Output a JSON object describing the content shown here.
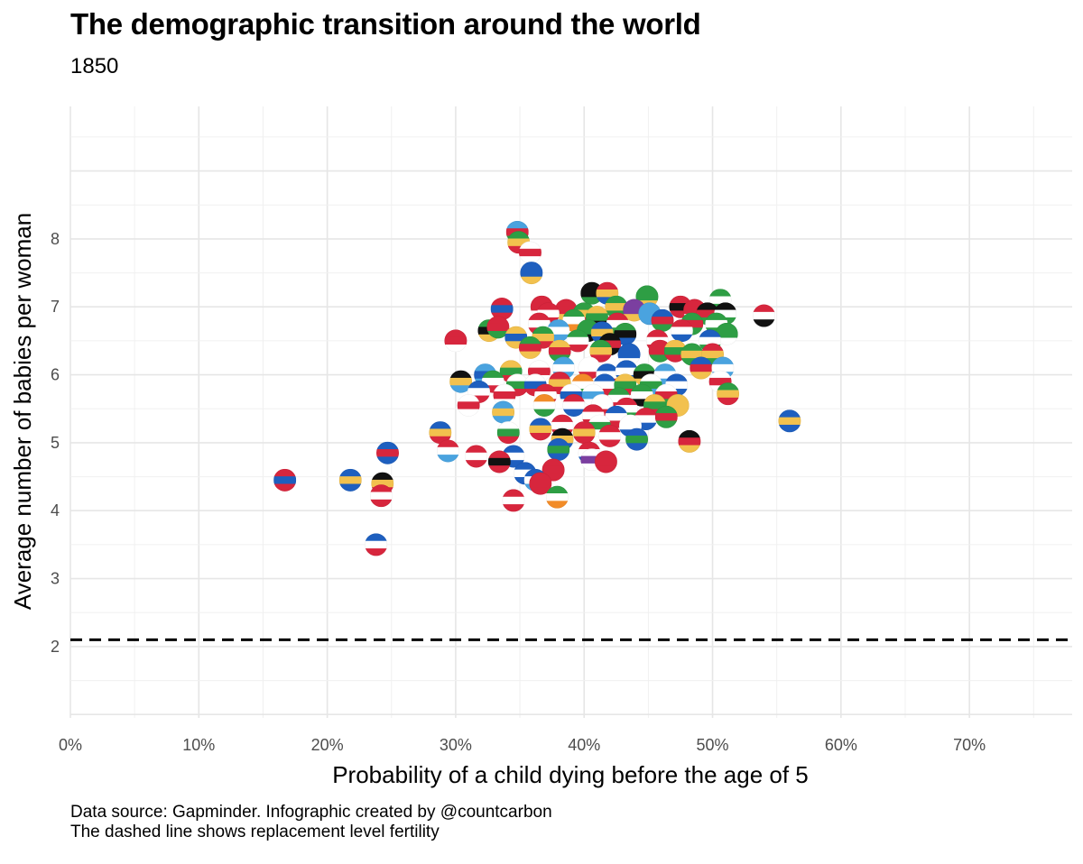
{
  "chart_data": {
    "type": "scatter",
    "title": "The demographic transition around the world",
    "subtitle": "1850",
    "xlabel": "Probability of a child dying before the age of 5",
    "ylabel": "Average number of babies per woman",
    "xlim": [
      0,
      78
    ],
    "ylim": [
      0.95,
      9.95
    ],
    "x_ticks": [
      0,
      10,
      20,
      30,
      40,
      50,
      60,
      70
    ],
    "x_tick_labels": [
      "0%",
      "10%",
      "20%",
      "30%",
      "40%",
      "50%",
      "60%",
      "70%"
    ],
    "y_ticks": [
      2,
      3,
      4,
      5,
      6,
      7,
      8
    ],
    "y_tick_labels": [
      "2",
      "3",
      "4",
      "5",
      "6",
      "7",
      "8"
    ],
    "grid": true,
    "reference_line": {
      "y": 2.1,
      "style": "dashed",
      "label": "replacement level fertility"
    },
    "caption": [
      "Data source: Gapminder. Infographic created by @countcarbon",
      "The dashed line shows replacement level fertility"
    ],
    "flag_colors": [
      "#d7263d",
      "#1e5fbf",
      "#2e9e44",
      "#f2c14e",
      "#111111",
      "#ffffff",
      "#f28c28",
      "#7b3fa0",
      "#4aa3df",
      "#e8e8e8"
    ],
    "points": [
      {
        "x": 34.8,
        "y": 8.1,
        "c": [
          "#4aa3df",
          "#d7263d",
          "#2e9e44"
        ]
      },
      {
        "x": 34.9,
        "y": 7.95,
        "c": [
          "#2e9e44",
          "#f2c14e",
          "#d7263d"
        ]
      },
      {
        "x": 35.8,
        "y": 7.8,
        "c": [
          "#ffffff",
          "#d7263d",
          "#ffffff"
        ]
      },
      {
        "x": 35.9,
        "y": 7.5,
        "c": [
          "#1e5fbf",
          "#1e5fbf",
          "#f2c14e"
        ]
      },
      {
        "x": 40.6,
        "y": 7.2,
        "c": [
          "#111111",
          "#111111",
          "#2e9e44"
        ]
      },
      {
        "x": 41.8,
        "y": 7.2,
        "c": [
          "#d7263d",
          "#f2c14e",
          "#1e5fbf"
        ]
      },
      {
        "x": 44.9,
        "y": 7.15,
        "c": [
          "#2e9e44",
          "#2e9e44",
          "#f2c14e"
        ]
      },
      {
        "x": 50.6,
        "y": 7.1,
        "c": [
          "#2e9e44",
          "#ffffff",
          "#2e9e44"
        ]
      },
      {
        "x": 36.7,
        "y": 7.0,
        "c": [
          "#d7263d",
          "#d7263d",
          "#ffffff"
        ]
      },
      {
        "x": 33.6,
        "y": 6.97,
        "c": [
          "#d7263d",
          "#1e5fbf",
          "#d7263d"
        ]
      },
      {
        "x": 38.6,
        "y": 6.95,
        "c": [
          "#d7263d",
          "#d7263d",
          "#f2c14e"
        ]
      },
      {
        "x": 42.5,
        "y": 7.0,
        "c": [
          "#2e9e44",
          "#f2c14e",
          "#2e9e44"
        ]
      },
      {
        "x": 43.9,
        "y": 6.95,
        "c": [
          "#7b3fa0",
          "#7b3fa0",
          "#f2c14e"
        ]
      },
      {
        "x": 47.5,
        "y": 7.0,
        "c": [
          "#d7263d",
          "#111111",
          "#d7263d"
        ]
      },
      {
        "x": 48.6,
        "y": 6.95,
        "c": [
          "#d7263d",
          "#d7263d",
          "#ffffff"
        ]
      },
      {
        "x": 37.2,
        "y": 6.9,
        "c": [
          "#d7263d",
          "#ffffff",
          "#d7263d"
        ]
      },
      {
        "x": 40.0,
        "y": 6.9,
        "c": [
          "#2e9e44",
          "#f2c14e",
          "#d7263d"
        ]
      },
      {
        "x": 41.0,
        "y": 6.85,
        "c": [
          "#f2c14e",
          "#2e9e44",
          "#111111"
        ]
      },
      {
        "x": 45.1,
        "y": 6.9,
        "c": [
          "#4aa3df",
          "#4aa3df",
          "#4aa3df"
        ]
      },
      {
        "x": 49.6,
        "y": 6.9,
        "c": [
          "#111111",
          "#d7263d",
          "#2e9e44"
        ]
      },
      {
        "x": 51.0,
        "y": 6.9,
        "c": [
          "#111111",
          "#ffffff",
          "#2e9e44"
        ]
      },
      {
        "x": 54.0,
        "y": 6.87,
        "c": [
          "#d7263d",
          "#ffffff",
          "#111111"
        ]
      },
      {
        "x": 36.5,
        "y": 6.75,
        "c": [
          "#d7263d",
          "#ffffff",
          "#d7263d"
        ]
      },
      {
        "x": 39.2,
        "y": 6.8,
        "c": [
          "#2e9e44",
          "#ffffff",
          "#f28c28"
        ]
      },
      {
        "x": 42.6,
        "y": 6.75,
        "c": [
          "#d7263d",
          "#ffffff",
          "#2e9e44"
        ]
      },
      {
        "x": 46.1,
        "y": 6.8,
        "c": [
          "#1e5fbf",
          "#d7263d",
          "#2e9e44"
        ]
      },
      {
        "x": 48.4,
        "y": 6.75,
        "c": [
          "#2e9e44",
          "#d7263d",
          "#2e9e44"
        ]
      },
      {
        "x": 50.3,
        "y": 6.75,
        "c": [
          "#2e9e44",
          "#ffffff",
          "#2e9e44"
        ]
      },
      {
        "x": 32.6,
        "y": 6.65,
        "c": [
          "#2e9e44",
          "#111111",
          "#f2c14e"
        ]
      },
      {
        "x": 33.3,
        "y": 6.7,
        "c": [
          "#d7263d",
          "#d7263d",
          "#2e9e44"
        ]
      },
      {
        "x": 38.0,
        "y": 6.65,
        "c": [
          "#4aa3df",
          "#ffffff",
          "#4aa3df"
        ]
      },
      {
        "x": 40.3,
        "y": 6.65,
        "c": [
          "#2e9e44",
          "#2e9e44",
          "#111111"
        ]
      },
      {
        "x": 41.4,
        "y": 6.62,
        "c": [
          "#1e5fbf",
          "#f2c14e",
          "#1e5fbf"
        ]
      },
      {
        "x": 43.2,
        "y": 6.6,
        "c": [
          "#2e9e44",
          "#111111",
          "#1e5fbf"
        ]
      },
      {
        "x": 47.6,
        "y": 6.65,
        "c": [
          "#d7263d",
          "#ffffff",
          "#1e5fbf"
        ]
      },
      {
        "x": 51.1,
        "y": 6.6,
        "c": [
          "#2e9e44",
          "#2e9e44",
          "#ffffff"
        ]
      },
      {
        "x": 30.0,
        "y": 6.5,
        "c": [
          "#d7263d",
          "#d7263d",
          "#ffffff"
        ]
      },
      {
        "x": 34.7,
        "y": 6.55,
        "c": [
          "#f2c14e",
          "#1e5fbf",
          "#f2c14e"
        ]
      },
      {
        "x": 36.8,
        "y": 6.55,
        "c": [
          "#2e9e44",
          "#f2c14e",
          "#d7263d"
        ]
      },
      {
        "x": 39.5,
        "y": 6.5,
        "c": [
          "#2e9e44",
          "#ffffff",
          "#d7263d"
        ]
      },
      {
        "x": 42.0,
        "y": 6.45,
        "c": [
          "#111111",
          "#d7263d",
          "#111111"
        ]
      },
      {
        "x": 45.7,
        "y": 6.5,
        "c": [
          "#d7263d",
          "#ffffff",
          "#d7263d"
        ]
      },
      {
        "x": 49.8,
        "y": 6.5,
        "c": [
          "#1e5fbf",
          "#ffffff",
          "#2e9e44"
        ]
      },
      {
        "x": 35.8,
        "y": 6.4,
        "c": [
          "#2e9e44",
          "#d7263d",
          "#f2c14e"
        ]
      },
      {
        "x": 38.1,
        "y": 6.35,
        "c": [
          "#f2c14e",
          "#d7263d",
          "#2e9e44"
        ]
      },
      {
        "x": 41.3,
        "y": 6.35,
        "c": [
          "#2e9e44",
          "#f2c14e",
          "#d7263d"
        ]
      },
      {
        "x": 43.5,
        "y": 6.3,
        "c": [
          "#1e5fbf",
          "#1e5fbf",
          "#ffffff"
        ]
      },
      {
        "x": 45.9,
        "y": 6.35,
        "c": [
          "#d7263d",
          "#d7263d",
          "#2e9e44"
        ]
      },
      {
        "x": 47.1,
        "y": 6.35,
        "c": [
          "#f2c14e",
          "#2e9e44",
          "#d7263d"
        ]
      },
      {
        "x": 48.4,
        "y": 6.3,
        "c": [
          "#2e9e44",
          "#f2c14e",
          "#2e9e44"
        ]
      },
      {
        "x": 50.0,
        "y": 6.3,
        "c": [
          "#d7263d",
          "#f2c14e",
          "#2e9e44"
        ]
      },
      {
        "x": 32.3,
        "y": 6.0,
        "c": [
          "#4aa3df",
          "#1e5fbf",
          "#4aa3df"
        ]
      },
      {
        "x": 34.3,
        "y": 6.05,
        "c": [
          "#f2c14e",
          "#2e9e44",
          "#d7263d"
        ]
      },
      {
        "x": 36.5,
        "y": 6.05,
        "c": [
          "#ffffff",
          "#d7263d",
          "#ffffff"
        ]
      },
      {
        "x": 38.4,
        "y": 6.1,
        "c": [
          "#4aa3df",
          "#ffffff",
          "#4aa3df"
        ]
      },
      {
        "x": 40.4,
        "y": 6.1,
        "c": [
          "#ffffff",
          "#ffffff",
          "#d7263d"
        ]
      },
      {
        "x": 41.8,
        "y": 6.0,
        "c": [
          "#1e5fbf",
          "#ffffff",
          "#d7263d"
        ]
      },
      {
        "x": 43.3,
        "y": 6.05,
        "c": [
          "#1e5fbf",
          "#ffffff",
          "#1e5fbf"
        ]
      },
      {
        "x": 44.7,
        "y": 6.0,
        "c": [
          "#2e9e44",
          "#111111",
          "#f2c14e"
        ]
      },
      {
        "x": 46.3,
        "y": 6.0,
        "c": [
          "#4aa3df",
          "#ffffff",
          "#4aa3df"
        ]
      },
      {
        "x": 49.1,
        "y": 6.1,
        "c": [
          "#1e5fbf",
          "#d7263d",
          "#f2c14e"
        ]
      },
      {
        "x": 50.8,
        "y": 6.1,
        "c": [
          "#4aa3df",
          "#ffffff",
          "#4aa3df"
        ]
      },
      {
        "x": 30.4,
        "y": 5.9,
        "c": [
          "#111111",
          "#f2c14e",
          "#4aa3df"
        ]
      },
      {
        "x": 32.9,
        "y": 5.9,
        "c": [
          "#2e9e44",
          "#ffffff",
          "#d7263d"
        ]
      },
      {
        "x": 34.8,
        "y": 5.85,
        "c": [
          "#ffffff",
          "#2e9e44",
          "#d7263d"
        ]
      },
      {
        "x": 36.2,
        "y": 5.85,
        "c": [
          "#ffffff",
          "#1e5fbf",
          "#d7263d"
        ]
      },
      {
        "x": 38.1,
        "y": 5.88,
        "c": [
          "#d7263d",
          "#f2c14e",
          "#d7263d"
        ]
      },
      {
        "x": 39.9,
        "y": 5.85,
        "c": [
          "#f28c28",
          "#ffffff",
          "#2e9e44"
        ]
      },
      {
        "x": 41.6,
        "y": 5.85,
        "c": [
          "#1e5fbf",
          "#ffffff",
          "#d7263d"
        ]
      },
      {
        "x": 43.2,
        "y": 5.85,
        "c": [
          "#f2c14e",
          "#2e9e44",
          "#d7263d"
        ]
      },
      {
        "x": 45.2,
        "y": 5.85,
        "c": [
          "#ffffff",
          "#2e9e44",
          "#4aa3df"
        ]
      },
      {
        "x": 47.2,
        "y": 5.85,
        "c": [
          "#1e5fbf",
          "#ffffff",
          "#1e5fbf"
        ]
      },
      {
        "x": 50.6,
        "y": 5.9,
        "c": [
          "#ffffff",
          "#d7263d",
          "#ffffff"
        ]
      },
      {
        "x": 31.8,
        "y": 5.75,
        "c": [
          "#1e5fbf",
          "#ffffff",
          "#d7263d"
        ]
      },
      {
        "x": 33.8,
        "y": 5.7,
        "c": [
          "#ffffff",
          "#d7263d",
          "#ffffff"
        ]
      },
      {
        "x": 37.0,
        "y": 5.7,
        "c": [
          "#d7263d",
          "#ffffff",
          "#d7263d"
        ]
      },
      {
        "x": 39.0,
        "y": 5.7,
        "c": [
          "#ffffff",
          "#1e5fbf",
          "#ffffff"
        ]
      },
      {
        "x": 40.7,
        "y": 5.7,
        "c": [
          "#ffffff",
          "#4aa3df",
          "#ffffff"
        ]
      },
      {
        "x": 42.7,
        "y": 5.65,
        "c": [
          "#2e9e44",
          "#ffffff",
          "#d7263d"
        ]
      },
      {
        "x": 44.5,
        "y": 5.7,
        "c": [
          "#2e9e44",
          "#ffffff",
          "#111111"
        ]
      },
      {
        "x": 46.4,
        "y": 5.7,
        "c": [
          "#ffffff",
          "#d7263d",
          "#2e9e44"
        ]
      },
      {
        "x": 51.2,
        "y": 5.72,
        "c": [
          "#2e9e44",
          "#f2c14e",
          "#d7263d"
        ]
      },
      {
        "x": 31.0,
        "y": 5.55,
        "c": [
          "#ffffff",
          "#d7263d",
          "#ffffff"
        ]
      },
      {
        "x": 36.9,
        "y": 5.55,
        "c": [
          "#f28c28",
          "#ffffff",
          "#2e9e44"
        ]
      },
      {
        "x": 39.2,
        "y": 5.55,
        "c": [
          "#d7263d",
          "#ffffff",
          "#1e5fbf"
        ]
      },
      {
        "x": 41.4,
        "y": 5.55,
        "c": [
          "#ffffff",
          "#ffffff",
          "#d7263d"
        ]
      },
      {
        "x": 43.3,
        "y": 5.5,
        "c": [
          "#d7263d",
          "#ffffff",
          "#2e9e44"
        ]
      },
      {
        "x": 45.5,
        "y": 5.55,
        "c": [
          "#f2c14e",
          "#2e9e44",
          "#d7263d"
        ]
      },
      {
        "x": 47.3,
        "y": 5.55,
        "c": [
          "#f2c14e",
          "#f2c14e",
          "#f2c14e"
        ]
      },
      {
        "x": 33.7,
        "y": 5.45,
        "c": [
          "#4aa3df",
          "#f2c14e",
          "#4aa3df"
        ]
      },
      {
        "x": 40.7,
        "y": 5.4,
        "c": [
          "#d7263d",
          "#ffffff",
          "#d7263d"
        ]
      },
      {
        "x": 42.5,
        "y": 5.38,
        "c": [
          "#1e5fbf",
          "#ffffff",
          "#d7263d"
        ]
      },
      {
        "x": 44.8,
        "y": 5.35,
        "c": [
          "#d7263d",
          "#ffffff",
          "#1e5fbf"
        ]
      },
      {
        "x": 46.4,
        "y": 5.38,
        "c": [
          "#2e9e44",
          "#d7263d",
          "#2e9e44"
        ]
      },
      {
        "x": 38.3,
        "y": 5.25,
        "c": [
          "#d7263d",
          "#ffffff",
          "#d7263d"
        ]
      },
      {
        "x": 41.2,
        "y": 5.25,
        "c": [
          "#ffffff",
          "#2e9e44",
          "#ffffff"
        ]
      },
      {
        "x": 43.6,
        "y": 5.25,
        "c": [
          "#ffffff",
          "#ffffff",
          "#1e5fbf"
        ]
      },
      {
        "x": 56.0,
        "y": 5.32,
        "c": [
          "#1e5fbf",
          "#f2c14e",
          "#1e5fbf"
        ]
      },
      {
        "x": 28.8,
        "y": 5.15,
        "c": [
          "#1e5fbf",
          "#f2c14e",
          "#d7263d"
        ]
      },
      {
        "x": 34.1,
        "y": 5.15,
        "c": [
          "#ffffff",
          "#2e9e44",
          "#d7263d"
        ]
      },
      {
        "x": 36.6,
        "y": 5.2,
        "c": [
          "#1e5fbf",
          "#f2c14e",
          "#d7263d"
        ]
      },
      {
        "x": 40.0,
        "y": 5.15,
        "c": [
          "#d7263d",
          "#f2c14e",
          "#d7263d"
        ]
      },
      {
        "x": 42.0,
        "y": 5.1,
        "c": [
          "#d7263d",
          "#ffffff",
          "#d7263d"
        ]
      },
      {
        "x": 38.3,
        "y": 5.05,
        "c": [
          "#111111",
          "#f2c14e",
          "#1e5fbf"
        ]
      },
      {
        "x": 44.1,
        "y": 5.05,
        "c": [
          "#1e5fbf",
          "#2e9e44",
          "#1e5fbf"
        ]
      },
      {
        "x": 48.2,
        "y": 5.02,
        "c": [
          "#111111",
          "#d7263d",
          "#f2c14e"
        ]
      },
      {
        "x": 29.4,
        "y": 4.88,
        "c": [
          "#d7263d",
          "#ffffff",
          "#4aa3df"
        ]
      },
      {
        "x": 38.0,
        "y": 4.9,
        "c": [
          "#1e5fbf",
          "#2e9e44",
          "#1e5fbf"
        ]
      },
      {
        "x": 40.4,
        "y": 4.85,
        "c": [
          "#d7263d",
          "#ffffff",
          "#1e5fbf"
        ]
      },
      {
        "x": 24.7,
        "y": 4.85,
        "c": [
          "#1e5fbf",
          "#d7263d",
          "#1e5fbf"
        ]
      },
      {
        "x": 31.6,
        "y": 4.8,
        "c": [
          "#d7263d",
          "#ffffff",
          "#d7263d"
        ]
      },
      {
        "x": 34.5,
        "y": 4.8,
        "c": [
          "#1e5fbf",
          "#ffffff",
          "#1e5fbf"
        ]
      },
      {
        "x": 40.6,
        "y": 4.75,
        "c": [
          "#ffffff",
          "#7b3fa0",
          "#ffffff"
        ]
      },
      {
        "x": 33.4,
        "y": 4.72,
        "c": [
          "#d7263d",
          "#111111",
          "#d7263d"
        ]
      },
      {
        "x": 41.7,
        "y": 4.72,
        "c": [
          "#d7263d",
          "#d7263d",
          "#d7263d"
        ]
      },
      {
        "x": 37.6,
        "y": 4.6,
        "c": [
          "#d7263d",
          "#d7263d",
          "#d7263d"
        ]
      },
      {
        "x": 35.4,
        "y": 4.55,
        "c": [
          "#1e5fbf",
          "#ffffff",
          "#1e5fbf"
        ]
      },
      {
        "x": 16.7,
        "y": 4.45,
        "c": [
          "#d7263d",
          "#1e5fbf",
          "#d7263d"
        ]
      },
      {
        "x": 21.8,
        "y": 4.45,
        "c": [
          "#1e5fbf",
          "#f2c14e",
          "#1e5fbf"
        ]
      },
      {
        "x": 24.3,
        "y": 4.4,
        "c": [
          "#111111",
          "#f2c14e",
          "#d7263d"
        ]
      },
      {
        "x": 36.2,
        "y": 4.45,
        "c": [
          "#1e5fbf",
          "#ffffff",
          "#4aa3df"
        ]
      },
      {
        "x": 36.6,
        "y": 4.4,
        "c": [
          "#d7263d",
          "#d7263d",
          "#d7263d"
        ]
      },
      {
        "x": 24.2,
        "y": 4.22,
        "c": [
          "#d7263d",
          "#ffffff",
          "#d7263d"
        ]
      },
      {
        "x": 37.9,
        "y": 4.2,
        "c": [
          "#2e9e44",
          "#ffffff",
          "#f28c28"
        ]
      },
      {
        "x": 34.5,
        "y": 4.15,
        "c": [
          "#d7263d",
          "#ffffff",
          "#d7263d"
        ]
      },
      {
        "x": 23.8,
        "y": 3.5,
        "c": [
          "#1e5fbf",
          "#ffffff",
          "#d7263d"
        ]
      }
    ]
  }
}
